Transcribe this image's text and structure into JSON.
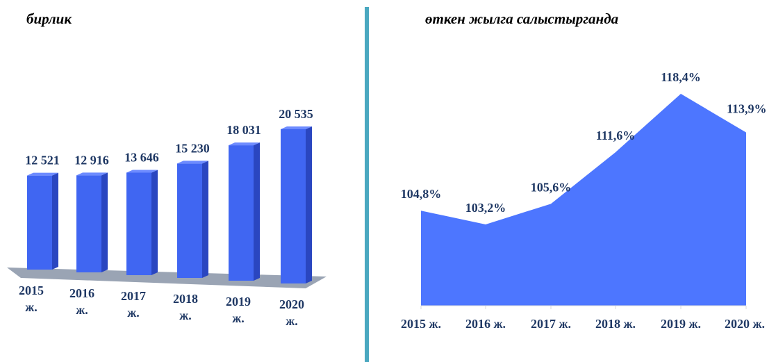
{
  "chart_data": [
    {
      "type": "bar3d",
      "title": "бирлик",
      "categories": [
        "2015 ж.",
        "2016 ж.",
        "2017 ж.",
        "2018 ж.",
        "2019 ж.",
        "2020 ж."
      ],
      "values": [
        12521,
        12916,
        13646,
        15230,
        18031,
        20535
      ],
      "value_labels": [
        "12 521",
        "12 916",
        "13 646",
        "15 230",
        "18 031",
        "20 535"
      ],
      "color": "#4066f2"
    },
    {
      "type": "area",
      "title": "өткен жылга салыстырганда",
      "categories": [
        "2015 ж.",
        "2016 ж.",
        "2017 ж.",
        "2018 ж.",
        "2019 ж.",
        "2020 ж."
      ],
      "values": [
        104.8,
        103.2,
        105.6,
        111.6,
        118.4,
        113.9
      ],
      "value_labels": [
        "104,8%",
        "103,2%",
        "105,6%",
        "111,6%",
        "118,4%",
        "113,9%"
      ],
      "color": "#4d76ff"
    }
  ]
}
